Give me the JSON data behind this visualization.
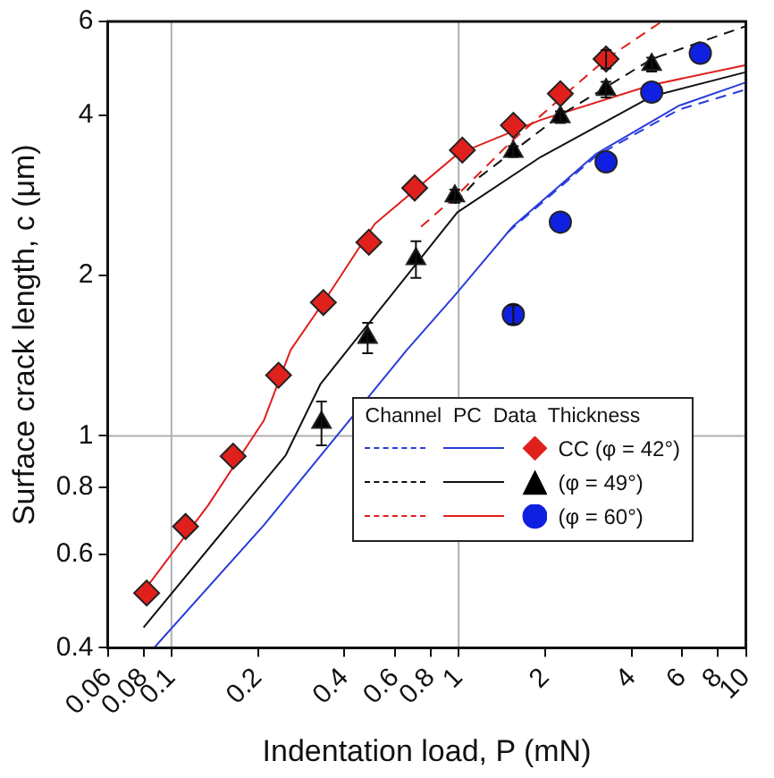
{
  "chart_data": {
    "type": "scatter",
    "xlabel": "Indentation load, P (mN)",
    "ylabel": "Surface crack length, c (μm)",
    "log": "xy",
    "xlim": [
      0.06,
      10
    ],
    "ylim": [
      0.4,
      6
    ],
    "xticks": [
      0.06,
      0.08,
      0.1,
      0.2,
      0.4,
      0.6,
      0.8,
      1,
      2,
      4,
      6,
      8,
      10
    ],
    "yticks": [
      0.4,
      0.6,
      0.8,
      1,
      2,
      4,
      6
    ],
    "legend": "right",
    "legend_title": "Channel  PC  Data  Thickness",
    "ref_lines": [
      {
        "axis": "x",
        "value": 0.1,
        "color": "#b0b0b0"
      },
      {
        "axis": "x",
        "value": 1,
        "color": "#b0b0b0"
      },
      {
        "axis": "y",
        "value": 1,
        "color": "#b0b0b0"
      }
    ],
    "series": [
      {
        "type": "line",
        "line_style": "dashed",
        "color": "#2a3bdc",
        "x": [
          1.48,
          3.0,
          5.85,
          10
        ],
        "values": [
          2.41,
          3.35,
          4.1,
          4.47
        ]
      },
      {
        "type": "line",
        "line_style": "dashed",
        "color": "#111111",
        "x": [
          0.97,
          1.18,
          2.26,
          4.7,
          10
        ],
        "values": [
          2.73,
          3.06,
          4.0,
          5.1,
          5.88
        ]
      },
      {
        "type": "line",
        "line_style": "dashed",
        "color": "#e0201c",
        "x": [
          0.74,
          1.0,
          1.55,
          2.26,
          3.26,
          5.1
        ],
        "values": [
          2.47,
          2.85,
          3.6,
          4.3,
          5.1,
          6.0
        ]
      },
      {
        "type": "line",
        "line_style": "solid",
        "color": "#2a3bdc",
        "x": [
          0.087,
          0.21,
          0.66,
          0.99,
          1.54,
          3.0,
          5.85,
          10
        ],
        "values": [
          0.4,
          0.68,
          1.45,
          1.86,
          2.47,
          3.38,
          4.17,
          4.61
        ]
      },
      {
        "type": "line",
        "line_style": "solid",
        "color": "#111111",
        "x": [
          0.08,
          0.25,
          0.33,
          0.51,
          0.99,
          1.93,
          4.7,
          10
        ],
        "values": [
          0.437,
          0.92,
          1.25,
          1.68,
          2.63,
          3.34,
          4.34,
          4.82
        ]
      },
      {
        "type": "line",
        "line_style": "solid",
        "color": "#e0201c",
        "x": [
          0.082,
          0.134,
          0.21,
          0.26,
          0.338,
          0.51,
          0.99,
          1.93,
          4.7,
          10
        ],
        "values": [
          0.52,
          0.74,
          1.07,
          1.45,
          1.78,
          2.5,
          3.38,
          3.92,
          4.56,
          4.97
        ]
      },
      {
        "type": "scatter",
        "name": "CC (φ = 42°)",
        "marker": "diamond",
        "color": "#e0201c",
        "x": [
          0.082,
          0.112,
          0.164,
          0.236,
          0.338,
          0.487,
          0.703,
          1.03,
          1.55,
          2.26,
          3.26
        ],
        "values": [
          0.507,
          0.676,
          0.916,
          1.3,
          1.78,
          2.31,
          2.92,
          3.44,
          3.83,
          4.39,
          5.1
        ],
        "errors": [
          null,
          null,
          null,
          null,
          null,
          null,
          null,
          null,
          null,
          null,
          0.2
        ]
      },
      {
        "type": "scatter",
        "name": "(φ = 49°)",
        "marker": "triangle",
        "color": "#000000",
        "x": [
          0.333,
          0.482,
          0.71,
          0.97,
          1.55,
          2.26,
          3.26,
          4.7
        ],
        "values": [
          1.06,
          1.53,
          2.15,
          2.82,
          3.42,
          3.97,
          4.47,
          4.98
        ],
        "errors": [
          0.1,
          0.1,
          0.17,
          0.08,
          0.08,
          0.1,
          0.15,
          0.15
        ]
      },
      {
        "type": "scatter",
        "name": "(φ = 60°)",
        "marker": "circle",
        "color": "#1020e0",
        "x": [
          1.55,
          2.26,
          3.26,
          4.7,
          6.94
        ],
        "values": [
          1.69,
          2.52,
          3.27,
          4.42,
          5.23
        ],
        "errors": [
          0.07,
          null,
          null,
          null,
          null
        ]
      }
    ]
  }
}
